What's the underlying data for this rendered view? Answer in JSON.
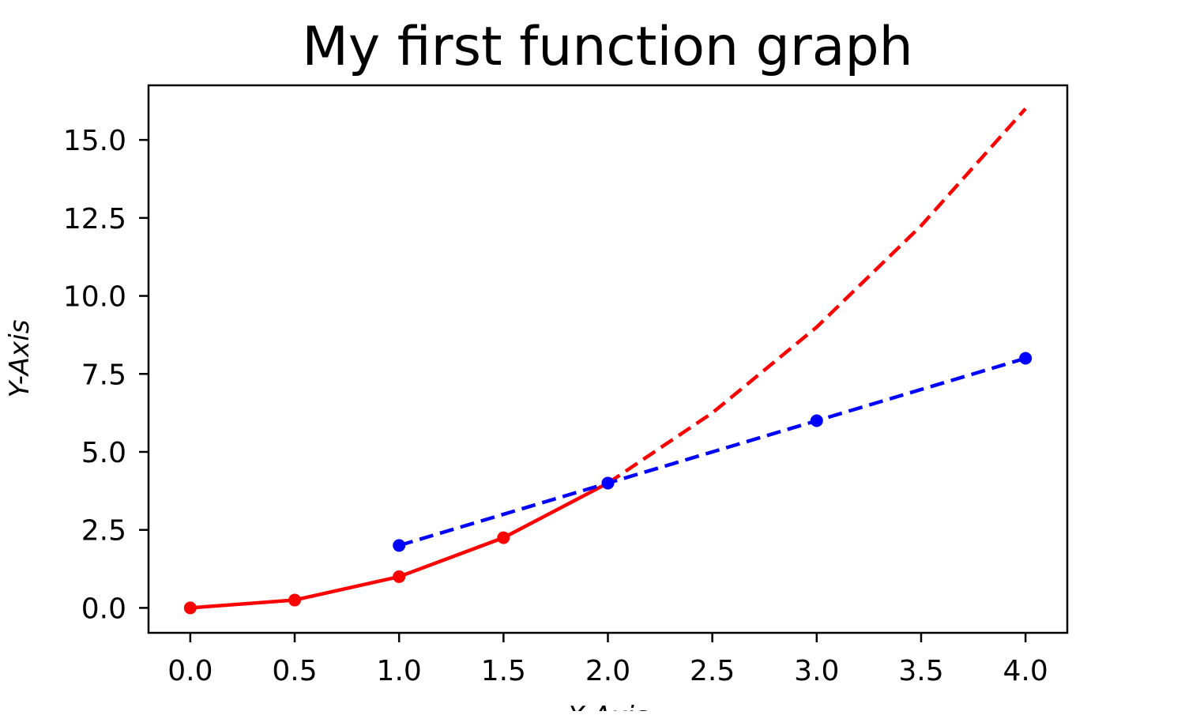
{
  "chart_data": {
    "type": "line",
    "title": "My first function graph",
    "xlabel": "X-Axis",
    "ylabel": "Y-Axis",
    "xlim": [
      -0.2,
      4.2
    ],
    "ylim": [
      -0.8,
      16.75
    ],
    "xticks": [
      0.0,
      0.5,
      1.0,
      1.5,
      2.0,
      2.5,
      3.0,
      3.5,
      4.0
    ],
    "xtick_labels": [
      "0.0",
      "0.5",
      "1.0",
      "1.5",
      "2.0",
      "2.5",
      "3.0",
      "3.5",
      "4.0"
    ],
    "yticks": [
      0.0,
      2.5,
      5.0,
      7.5,
      10.0,
      12.5,
      15.0
    ],
    "ytick_labels": [
      "0.0",
      "2.5",
      "5.0",
      "7.5",
      "10.0",
      "12.5",
      "15.0"
    ],
    "grid": false,
    "legend": "none",
    "series": [
      {
        "style": "solid",
        "markers": true,
        "color": "#ff0000",
        "x": [
          0.0,
          0.5,
          1.0,
          1.5,
          2.0
        ],
        "y": [
          0.0,
          0.25,
          1.0,
          2.25,
          4.0
        ]
      },
      {
        "style": "dashed",
        "markers": false,
        "color": "#ff0000",
        "x": [
          2.0,
          2.5,
          3.0,
          3.5,
          4.0
        ],
        "y": [
          4.0,
          6.25,
          9.0,
          12.25,
          16.0
        ]
      },
      {
        "style": "dashed",
        "markers": true,
        "color": "#0000ff",
        "x": [
          1.0,
          2.0,
          3.0,
          4.0
        ],
        "y": [
          2.0,
          4.0,
          6.0,
          8.0
        ]
      }
    ]
  }
}
